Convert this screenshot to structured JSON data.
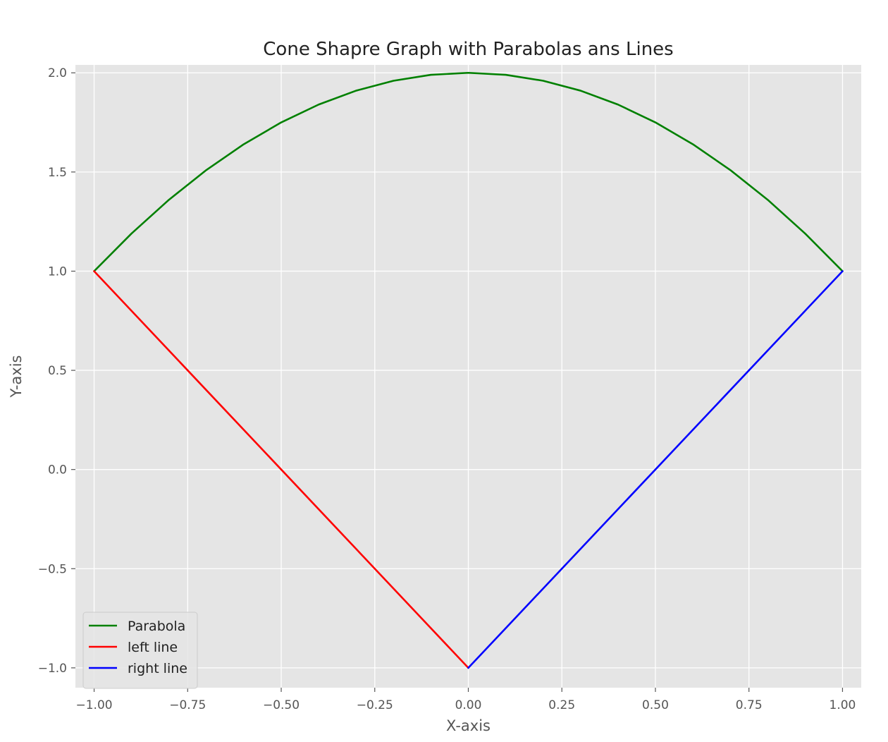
{
  "chart_data": {
    "type": "line",
    "title": "Cone Shapre Graph with Parabolas ans Lines",
    "xlabel": "X-axis",
    "ylabel": "Y-axis",
    "xlim": [
      -1.05,
      1.05
    ],
    "ylim": [
      -1.1,
      2.04
    ],
    "xticks": [
      -1.0,
      -0.75,
      -0.5,
      -0.25,
      0.0,
      0.25,
      0.5,
      0.75,
      1.0
    ],
    "xtick_labels": [
      "−1.00",
      "−0.75",
      "−0.50",
      "−0.25",
      "0.00",
      "0.25",
      "0.50",
      "0.75",
      "1.00"
    ],
    "yticks": [
      -1.0,
      -0.5,
      0.0,
      0.5,
      1.0,
      1.5,
      2.0
    ],
    "ytick_labels": [
      "−1.0",
      "−0.5",
      "0.0",
      "0.5",
      "1.0",
      "1.5",
      "2.0"
    ],
    "grid": true,
    "legend_position": "lower-left",
    "background_color": "#e5e5e5",
    "grid_color": "#ffffff",
    "series": [
      {
        "name": "Parabola",
        "color": "#008000",
        "x": [
          -1.0,
          -0.9,
          -0.8,
          -0.7,
          -0.6,
          -0.5,
          -0.4,
          -0.3,
          -0.2,
          -0.1,
          0.0,
          0.1,
          0.2,
          0.3,
          0.4,
          0.5,
          0.6,
          0.7,
          0.8,
          0.9,
          1.0
        ],
        "y": [
          1.0,
          1.19,
          1.36,
          1.51,
          1.64,
          1.75,
          1.84,
          1.91,
          1.96,
          1.99,
          2.0,
          1.99,
          1.96,
          1.91,
          1.84,
          1.75,
          1.64,
          1.51,
          1.36,
          1.19,
          1.0
        ]
      },
      {
        "name": "left line",
        "color": "#ff0000",
        "x": [
          -1.0,
          0.0
        ],
        "y": [
          1.0,
          -1.0
        ]
      },
      {
        "name": "right line",
        "color": "#0000ff",
        "x": [
          0.0,
          1.0
        ],
        "y": [
          -1.0,
          1.0
        ]
      }
    ]
  }
}
